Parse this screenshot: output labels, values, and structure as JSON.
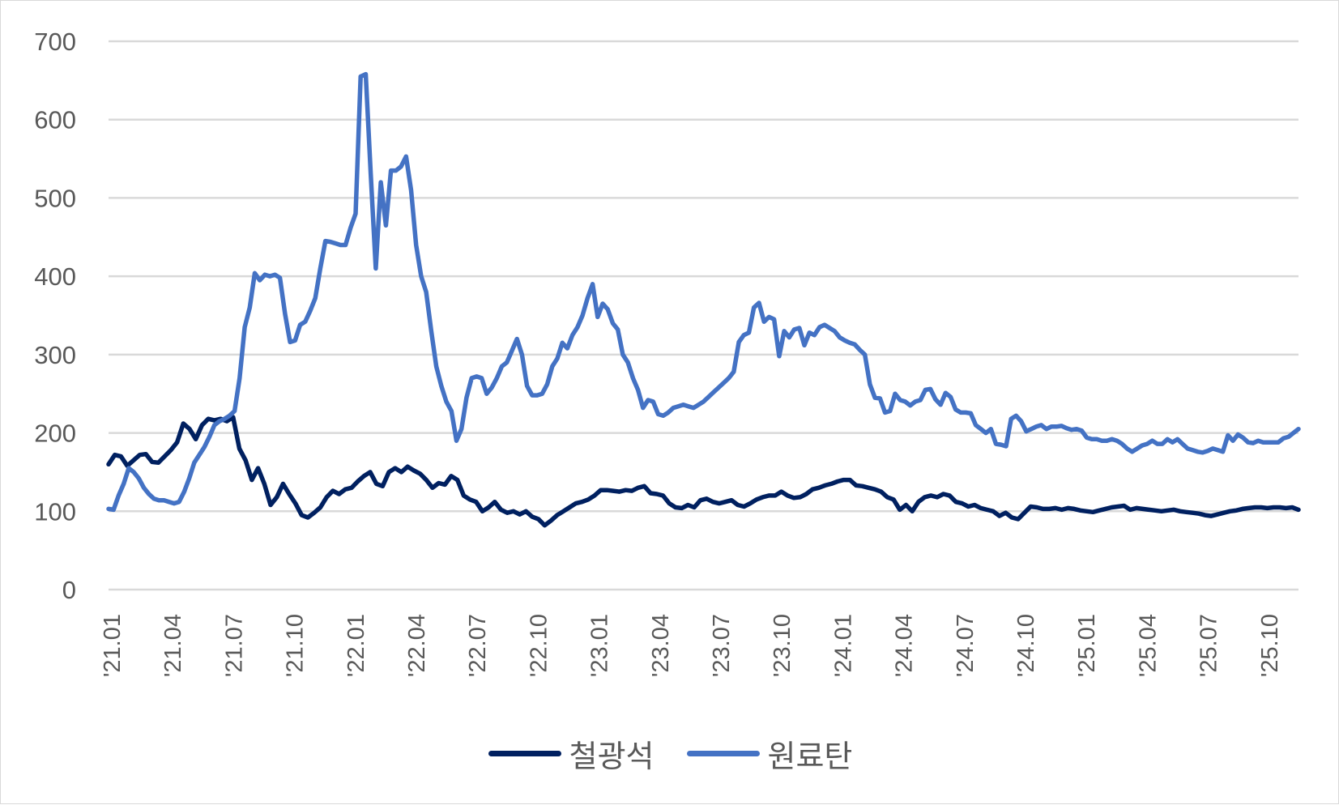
{
  "chart_data": {
    "type": "line",
    "title": "",
    "xlabel": "",
    "ylabel": "",
    "ylim": [
      0,
      700
    ],
    "yticks": [
      0,
      100,
      200,
      300,
      400,
      500,
      600,
      700
    ],
    "grid": true,
    "legend_position": "bottom",
    "xtick_labels": [
      "'21.01",
      "'21.04",
      "'21.07",
      "'21.10",
      "'22.01",
      "'22.04",
      "'22.07",
      "'22.10",
      "'23.01",
      "'23.04",
      "'23.07",
      "'23.10",
      "'24.01",
      "'24.04",
      "'24.07",
      "'24.10",
      "'25.01",
      "'25.04",
      "'25.07",
      "'25.10"
    ],
    "x_start": "'21.01",
    "x_end": "'25.11",
    "series": [
      {
        "name": "철광석",
        "color": "#002060",
        "values": [
          160,
          172,
          170,
          158,
          165,
          172,
          173,
          163,
          162,
          170,
          178,
          188,
          212,
          205,
          192,
          210,
          218,
          216,
          218,
          215,
          220,
          180,
          165,
          140,
          155,
          135,
          108,
          118,
          135,
          122,
          110,
          95,
          92,
          98,
          105,
          118,
          126,
          122,
          128,
          130,
          138,
          145,
          150,
          135,
          132,
          150,
          155,
          150,
          157,
          152,
          148,
          140,
          130,
          136,
          134,
          145,
          140,
          120,
          115,
          112,
          100,
          105,
          112,
          102,
          98,
          100,
          96,
          100,
          93,
          90,
          82,
          88,
          95,
          100,
          105,
          110,
          112,
          115,
          120,
          127,
          127,
          126,
          125,
          127,
          126,
          130,
          132,
          123,
          122,
          120,
          110,
          105,
          104,
          108,
          105,
          114,
          116,
          112,
          110,
          112,
          114,
          108,
          106,
          110,
          115,
          118,
          120,
          120,
          125,
          120,
          117,
          118,
          122,
          128,
          130,
          133,
          135,
          138,
          140,
          140,
          133,
          132,
          130,
          128,
          125,
          118,
          115,
          102,
          108,
          100,
          112,
          118,
          120,
          118,
          122,
          120,
          112,
          110,
          106,
          108,
          104,
          102,
          100,
          94,
          98,
          92,
          90,
          98,
          106,
          105,
          103,
          103,
          104,
          102,
          104,
          103,
          101,
          100,
          99,
          101,
          103,
          105,
          106,
          107,
          102,
          104,
          103,
          102,
          101,
          100,
          101,
          102,
          100,
          99,
          98,
          97,
          95,
          94,
          96,
          98,
          100,
          101,
          103,
          104,
          105,
          105,
          104,
          105,
          105,
          104,
          105,
          102
        ]
      },
      {
        "name": "원료탄",
        "color": "#4472c4",
        "values": [
          103,
          102,
          120,
          135,
          155,
          150,
          142,
          130,
          122,
          116,
          114,
          114,
          112,
          110,
          112,
          125,
          142,
          162,
          172,
          182,
          195,
          210,
          215,
          218,
          222,
          228,
          270,
          335,
          360,
          404,
          395,
          402,
          400,
          402,
          398,
          352,
          316,
          318,
          338,
          342,
          356,
          372,
          410,
          445,
          444,
          442,
          440,
          440,
          462,
          480,
          655,
          658,
          530,
          410,
          520,
          465,
          535,
          535,
          540,
          553,
          510,
          440,
          400,
          380,
          330,
          285,
          260,
          240,
          228,
          190,
          205,
          245,
          270,
          272,
          270,
          250,
          258,
          270,
          285,
          290,
          305,
          320,
          300,
          260,
          248,
          248,
          250,
          262,
          285,
          295,
          315,
          308,
          325,
          335,
          350,
          372,
          390,
          348,
          365,
          358,
          340,
          332,
          300,
          290,
          270,
          255,
          232,
          242,
          240,
          224,
          222,
          226,
          232,
          234,
          236,
          234,
          232,
          236,
          240,
          246,
          252,
          258,
          264,
          270,
          278,
          316,
          325,
          328,
          360,
          366,
          342,
          348,
          345,
          298,
          330,
          322,
          332,
          334,
          312,
          328,
          325,
          335,
          338,
          334,
          330,
          322,
          318,
          315,
          313,
          306,
          300,
          262,
          245,
          244,
          226,
          228,
          250,
          242,
          240,
          235,
          240,
          242,
          255,
          256,
          243,
          236,
          251,
          246,
          230,
          226,
          226,
          225,
          210,
          205,
          200,
          205,
          186,
          185,
          183,
          218,
          222,
          215,
          202,
          205,
          208,
          210,
          205,
          208,
          208,
          209,
          206,
          204,
          205,
          203,
          194,
          192,
          192,
          190,
          190,
          192,
          190,
          186,
          180,
          176,
          180,
          184,
          186,
          190,
          186,
          186,
          192,
          188,
          192,
          186,
          180,
          178,
          176,
          175,
          177,
          180,
          178,
          176,
          197,
          190,
          198,
          194,
          188,
          187,
          190,
          188,
          188,
          188,
          188,
          193,
          195,
          200,
          205
        ]
      }
    ]
  },
  "legend": {
    "items": [
      {
        "label": "철광석",
        "color": "#002060"
      },
      {
        "label": "원료탄",
        "color": "#4472c4"
      }
    ]
  },
  "style": {
    "gridline_color": "#d9d9d9",
    "text_color": "#595959",
    "border_color": "#d9d9d9"
  }
}
